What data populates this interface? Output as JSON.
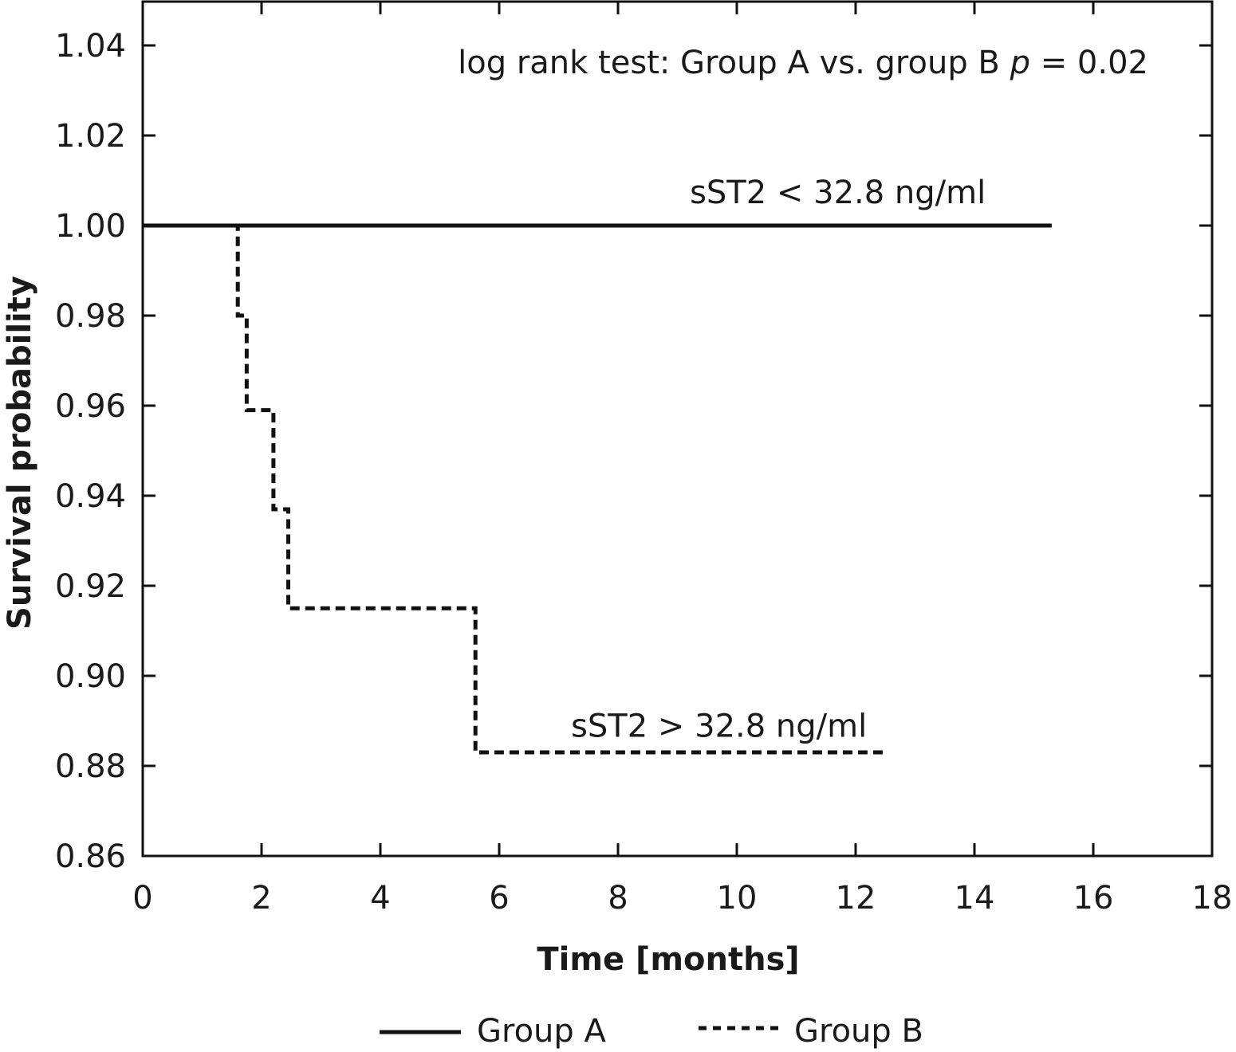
{
  "chart_data": {
    "type": "line",
    "xlabel": "Time [months]",
    "ylabel": "Survival probability",
    "xlim": [
      0,
      18
    ],
    "ylim": [
      0.86,
      1.05
    ],
    "xticks": [
      0,
      2,
      4,
      6,
      8,
      10,
      12,
      14,
      16,
      18
    ],
    "xtick_labels": [
      "0",
      "2",
      "4",
      "6",
      "8",
      "10",
      "12",
      "14",
      "16",
      "18"
    ],
    "yticks": [
      0.86,
      0.88,
      0.9,
      0.92,
      0.94,
      0.96,
      0.98,
      1.0,
      1.02,
      1.04
    ],
    "ytick_labels": [
      "0.86",
      "0.88",
      "0.90",
      "0.92",
      "0.94",
      "0.96",
      "0.98",
      "1.00",
      "1.02",
      "1.04"
    ],
    "grid": false,
    "legend_position": "bottom-center",
    "annotation": {
      "text_main": "log rank test: Group A vs. group B ",
      "text_p": "p",
      "text_value": " = 0.02"
    },
    "series": [
      {
        "name": "Group A",
        "style": "solid",
        "color": "#111111",
        "label": "sST2 < 32.8 ng/ml",
        "label_pos": [
          11.7,
          1.005
        ],
        "steps": [
          [
            0,
            1.0
          ],
          [
            15.3,
            1.0
          ]
        ]
      },
      {
        "name": "Group B",
        "style": "dashed",
        "color": "#111111",
        "label": "sST2 > 32.8 ng/ml",
        "label_pos": [
          9.7,
          0.8865
        ],
        "steps": [
          [
            0,
            1.0
          ],
          [
            1.6,
            0.98
          ],
          [
            1.75,
            0.959
          ],
          [
            2.2,
            0.937
          ],
          [
            2.45,
            0.915
          ],
          [
            5.6,
            0.883
          ],
          [
            12.5,
            0.883
          ]
        ]
      }
    ]
  }
}
